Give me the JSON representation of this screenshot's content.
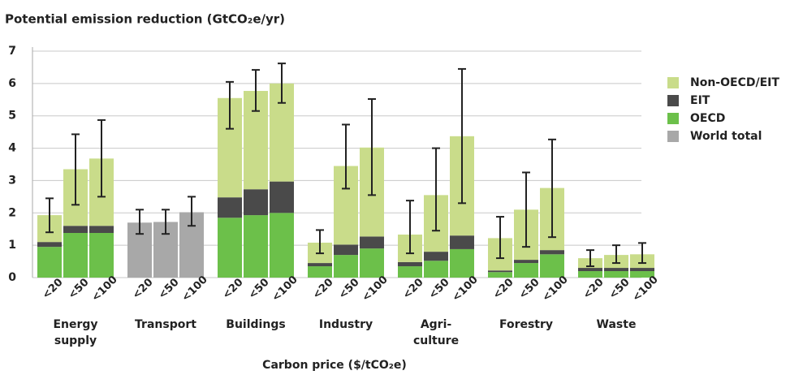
{
  "chart_data": {
    "type": "bar",
    "title": "Potential emission reduction (GtCO₂e/yr)",
    "x_label": "Carbon price ($/tCO₂e)",
    "groups": [
      [
        "Energy",
        "supply"
      ],
      [
        "Transport"
      ],
      [
        "Buildings"
      ],
      [
        "Industry"
      ],
      [
        "Agri-",
        "culture"
      ],
      [
        "Forestry"
      ],
      [
        "Waste"
      ]
    ],
    "categories": [
      "<20",
      "<50",
      "<100",
      "<20",
      "<50",
      "<100",
      "<20",
      "<50",
      "<100",
      "<20",
      "<50",
      "<100",
      "<20",
      "<50",
      "<100",
      "<20",
      "<50",
      "<100",
      "<20",
      "<50",
      "<100"
    ],
    "series": [
      {
        "name": "Non-OECD/EIT",
        "color": "#c9dc8a",
        "values": [
          0.83,
          1.75,
          2.08,
          null,
          null,
          null,
          3.07,
          3.04,
          3.03,
          0.63,
          2.43,
          2.75,
          0.85,
          1.75,
          3.07,
          1.0,
          1.55,
          1.92,
          0.3,
          0.4,
          0.42
        ]
      },
      {
        "name": "EIT",
        "color": "#4a4a4a",
        "values": [
          0.15,
          0.22,
          0.22,
          null,
          null,
          null,
          0.63,
          0.8,
          0.97,
          0.1,
          0.32,
          0.37,
          0.13,
          0.28,
          0.42,
          0.05,
          0.1,
          0.13,
          0.1,
          0.1,
          0.1
        ]
      },
      {
        "name": "OECD",
        "color": "#6cc04a",
        "values": [
          0.95,
          1.38,
          1.38,
          null,
          null,
          null,
          1.85,
          1.93,
          2.0,
          0.35,
          0.7,
          0.9,
          0.35,
          0.52,
          0.88,
          0.17,
          0.45,
          0.72,
          0.2,
          0.2,
          0.2
        ]
      },
      {
        "name": "World total",
        "color": "#a8a8a8",
        "values": [
          null,
          null,
          null,
          1.7,
          1.72,
          2.02,
          null,
          null,
          null,
          null,
          null,
          null,
          null,
          null,
          null,
          null,
          null,
          null,
          null,
          null,
          null
        ]
      }
    ],
    "error_low": [
      1.4,
      2.25,
      2.5,
      1.35,
      1.35,
      1.6,
      4.6,
      5.15,
      5.4,
      0.75,
      2.75,
      2.55,
      0.75,
      1.45,
      2.3,
      0.6,
      0.95,
      1.25,
      0.35,
      0.45,
      0.45
    ],
    "error_high": [
      2.45,
      4.43,
      4.87,
      2.1,
      2.1,
      2.5,
      6.05,
      6.42,
      6.62,
      1.47,
      4.73,
      5.52,
      2.38,
      4.0,
      6.45,
      1.88,
      3.25,
      4.27,
      0.85,
      1.0,
      1.07
    ],
    "ylim": [
      0,
      7
    ],
    "yticks": [
      0,
      1,
      2,
      3,
      4,
      5,
      6,
      7
    ],
    "grid": true
  }
}
